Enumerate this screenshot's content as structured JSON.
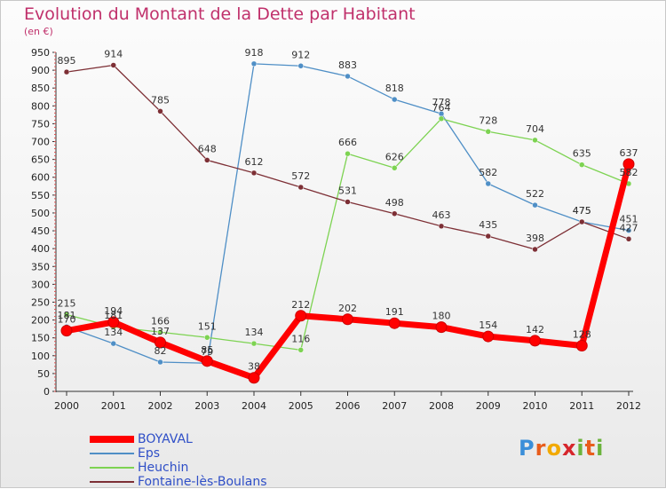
{
  "title": "Evolution du Montant de la Dette par Habitant",
  "subtitle": "(en €)",
  "brand": {
    "letters": [
      "P",
      "r",
      "o",
      "x",
      "i",
      "t",
      "i"
    ],
    "colors": [
      "#3b8fd9",
      "#e85d1c",
      "#f2a900",
      "#d6262c",
      "#6bb33c",
      "#e85d1c",
      "#6bb33c"
    ]
  },
  "chart_data": {
    "type": "line",
    "x": [
      "2000",
      "2001",
      "2002",
      "2003",
      "2004",
      "2005",
      "2006",
      "2007",
      "2008",
      "2009",
      "2010",
      "2011",
      "2012"
    ],
    "yticks": [
      "0",
      "50",
      "100",
      "150",
      "200",
      "250",
      "300",
      "350",
      "400",
      "450",
      "500",
      "550",
      "600",
      "650",
      "700",
      "750",
      "800",
      "850",
      "900",
      "950"
    ],
    "ylim": [
      0,
      950
    ],
    "grid": false,
    "legend_position": "bottom-left",
    "series": [
      {
        "name": "BOYAVAL",
        "color": "#ff0000",
        "thick": true,
        "values": [
          170,
          194,
          137,
          85,
          38,
          212,
          202,
          191,
          180,
          154,
          142,
          128,
          637
        ],
        "labels": [
          "170",
          "194",
          "137",
          "85",
          "38",
          "212",
          "202",
          "191",
          "180",
          "154",
          "142",
          "128",
          "637"
        ]
      },
      {
        "name": "Eps",
        "color": "#4f8fc6",
        "thick": false,
        "values": [
          181,
          134,
          82,
          79,
          918,
          912,
          883,
          818,
          778,
          582,
          522,
          475,
          451
        ],
        "labels": [
          "181",
          "134",
          "82",
          "79",
          "918",
          "912",
          "883",
          "818",
          "778",
          "582",
          "522",
          "475",
          "451"
        ]
      },
      {
        "name": "Heuchin",
        "color": "#7dd352",
        "thick": false,
        "values": [
          215,
          181,
          166,
          151,
          134,
          116,
          666,
          626,
          764,
          728,
          704,
          635,
          582
        ],
        "labels": [
          "215",
          "181",
          "166",
          "151",
          "134",
          "116",
          "666",
          "626",
          "764",
          "728",
          "704",
          "635",
          "582"
        ]
      },
      {
        "name": "Fontaine-lès-Boulans",
        "color": "#7d2f35",
        "thick": false,
        "values": [
          895,
          914,
          785,
          648,
          612,
          572,
          531,
          498,
          463,
          435,
          398,
          475,
          427
        ],
        "labels": [
          "895",
          "914",
          "785",
          "648",
          "612",
          "572",
          "531",
          "498",
          "463",
          "435",
          "398",
          "475",
          "427"
        ]
      }
    ]
  }
}
